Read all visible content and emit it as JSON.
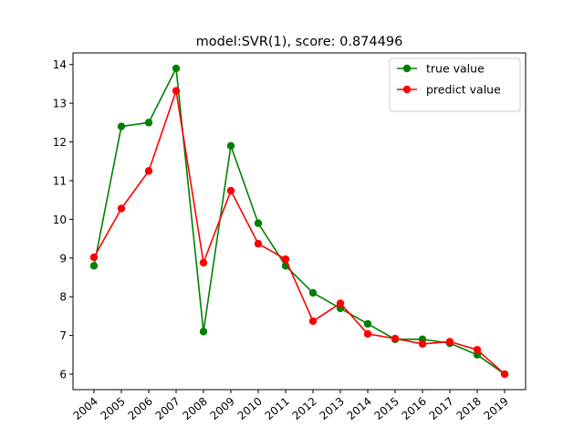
{
  "chart_data": {
    "type": "line",
    "title": "model:SVR(1), score: 0.874496",
    "xlabel": "",
    "ylabel": "",
    "categories": [
      "2004",
      "2005",
      "2006",
      "2007",
      "2008",
      "2009",
      "2010",
      "2011",
      "2012",
      "2013",
      "2014",
      "2015",
      "2016",
      "2017",
      "2018",
      "2019"
    ],
    "series": [
      {
        "name": "true value",
        "color": "#008000",
        "marker": "circle",
        "values": [
          8.8,
          12.4,
          12.5,
          13.9,
          7.1,
          11.9,
          9.9,
          8.8,
          8.1,
          7.7,
          7.3,
          6.9,
          6.9,
          6.8,
          6.5,
          6.0
        ]
      },
      {
        "name": "predict value",
        "color": "#ff0000",
        "marker": "circle",
        "values": [
          9.02,
          10.28,
          11.25,
          13.32,
          8.88,
          10.74,
          9.37,
          8.97,
          7.37,
          7.83,
          7.04,
          6.92,
          6.78,
          6.84,
          6.63,
          6.0
        ]
      }
    ],
    "yticks": [
      6,
      7,
      8,
      9,
      10,
      11,
      12,
      13,
      14
    ],
    "ylim": [
      5.6,
      14.3
    ],
    "xtick_rotation": 40,
    "grid": false,
    "legend": "top-right"
  }
}
